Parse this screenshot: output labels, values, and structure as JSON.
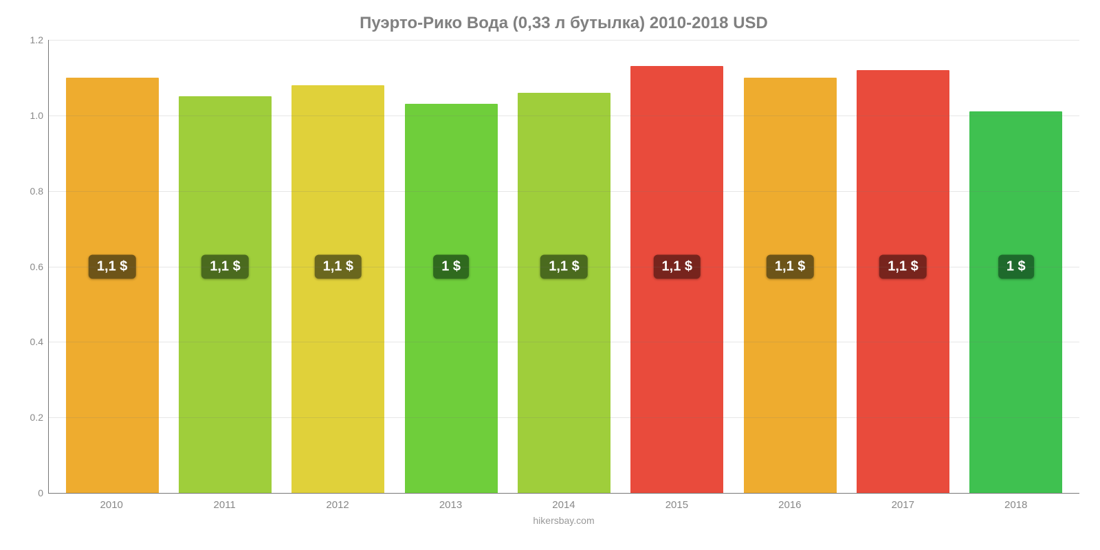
{
  "chart": {
    "type": "bar",
    "title": "Пуэрто-Рико Вода (0,33 л бутылка) 2010-2018 USD",
    "title_fontsize": 24,
    "title_color": "#808080",
    "background_color": "#ffffff",
    "axis_color": "#777777",
    "grid_color": "#777777",
    "grid_opacity": 0.18,
    "tick_color": "#888888",
    "tick_fontsize": 14,
    "xlabel_fontsize": 15,
    "ylim": [
      0,
      1.2
    ],
    "ytick_step": 0.2,
    "yticks": [
      "0",
      "0.2",
      "0.4",
      "0.6",
      "0.8",
      "1.0",
      "1.2"
    ],
    "bar_width_pct": 82,
    "label_y_value": 0.6,
    "label_fontsize": 20,
    "label_badge_radius": 6,
    "categories": [
      "2010",
      "2011",
      "2012",
      "2013",
      "2014",
      "2015",
      "2016",
      "2017",
      "2018"
    ],
    "values": [
      1.1,
      1.05,
      1.08,
      1.03,
      1.06,
      1.13,
      1.1,
      1.12,
      1.01
    ],
    "value_labels": [
      "1,1 $",
      "1,1 $",
      "1,1 $",
      "1 $",
      "1,1 $",
      "1,1 $",
      "1,1 $",
      "1,1 $",
      "1 $"
    ],
    "bar_colors": [
      "#eeac2f",
      "#9fce3b",
      "#e0d13a",
      "#6fce3b",
      "#9fce3b",
      "#e94b3c",
      "#eeac2f",
      "#e94b3c",
      "#3fc150"
    ],
    "label_bg_colors": [
      "#6d5418",
      "#4a6a1e",
      "#6a671e",
      "#2f6a1e",
      "#4a6a1e",
      "#77241d",
      "#6d5418",
      "#77241d",
      "#1e6a2c"
    ],
    "label_text_color": "#ffffff",
    "footer": "hikersbay.com",
    "footer_color": "#999999",
    "footer_fontsize": 14
  }
}
